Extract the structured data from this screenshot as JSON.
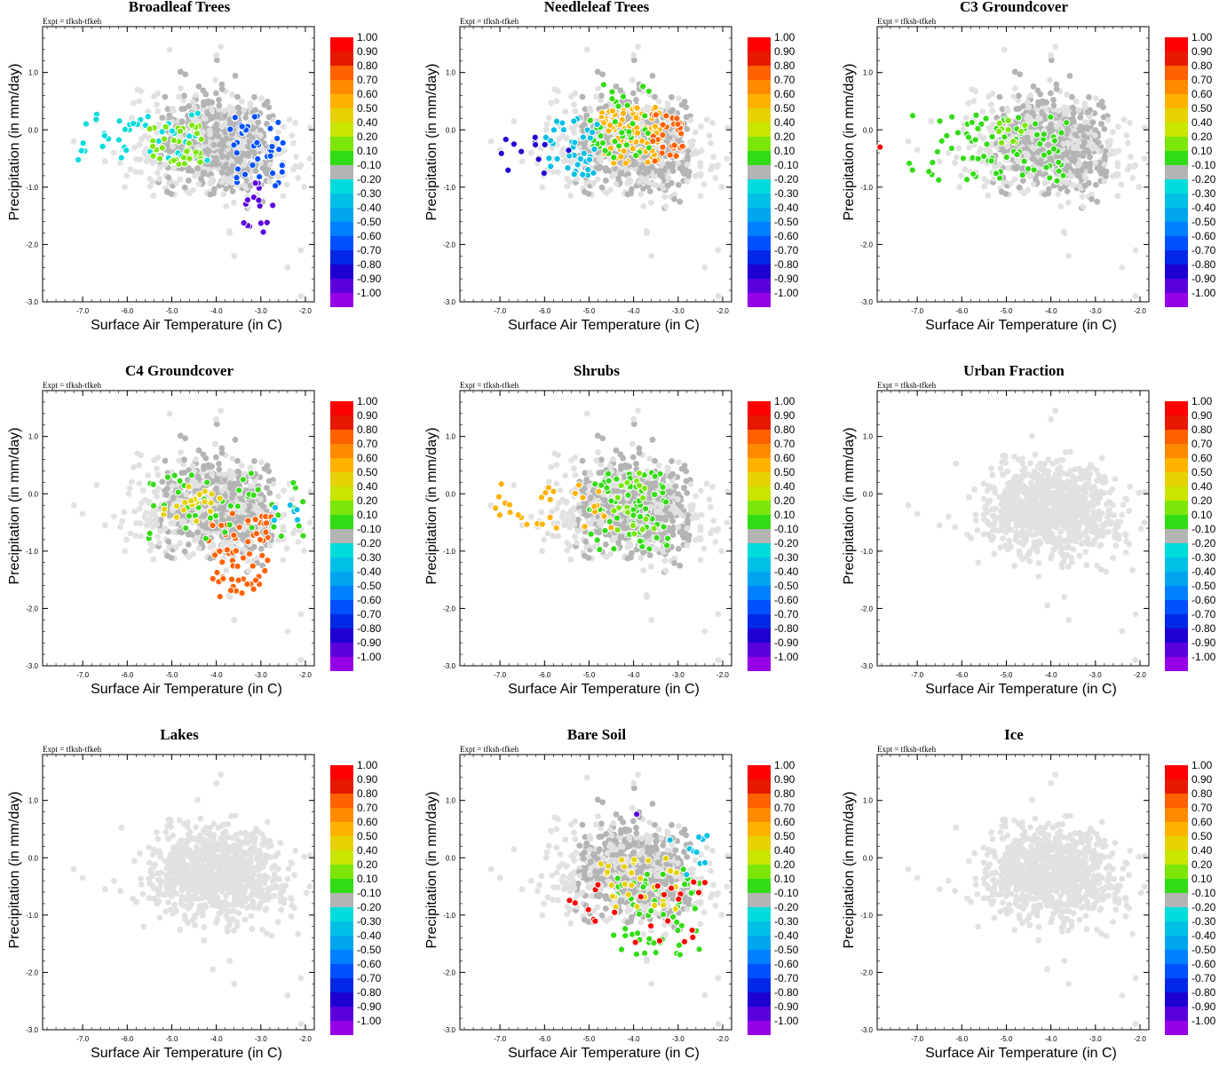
{
  "figure": {
    "experiment_label": "Expt = tfksh-tfkeh",
    "xlabel": "Surface Air Temperature (in C)",
    "ylabel": "Precipitation (in mm/day)",
    "panel_titles": [
      "Broadleaf Trees",
      "Needleleaf Trees",
      "C3 Groundcover",
      "C4 Groundcover",
      "Shrubs",
      "Urban Fraction",
      "Lakes",
      "Bare Soil",
      "Ice"
    ]
  },
  "colors": {
    "background_points_light": "#e1e1e1",
    "background_points_mid": "#b4b4b4",
    "palette": [
      "#ff0000",
      "#e61900",
      "#ff6000",
      "#ff8a00",
      "#ffb300",
      "#e6d200",
      "#c8e600",
      "#7ce60a",
      "#32dc14",
      "#b4b4b4",
      "#00dcdc",
      "#00c0e6",
      "#00a5f0",
      "#0080ff",
      "#0050ff",
      "#0028e6",
      "#1e00d2",
      "#5a00dc",
      "#9600e6"
    ]
  },
  "chart_data": [
    {
      "type": "scatter",
      "title": "Broadleaf Trees",
      "xlabel": "Surface Air Temperature (in C)",
      "ylabel": "Precipitation (in mm/day)",
      "xlim": [
        -7.9,
        -1.8
      ],
      "ylim": [
        -3.0,
        1.8
      ],
      "xticks": [
        -7.0,
        -6.0,
        -5.0,
        -4.0,
        -3.0,
        -2.0
      ],
      "yticks": [
        1.0,
        0.0,
        -1.0,
        -2.0,
        -3.0
      ],
      "colorbar": {
        "labels": [
          "1.00",
          "0.90",
          "0.80",
          "0.70",
          "0.60",
          "0.50",
          "0.40",
          "0.20",
          "0.10",
          "-0.10",
          "-0.20",
          "-0.30",
          "-0.40",
          "-0.50",
          "-0.60",
          "-0.70",
          "-0.80",
          "-0.90",
          "-1.00"
        ],
        "colors": [
          "#ff0000",
          "#e61900",
          "#ff6000",
          "#ff8a00",
          "#ffb300",
          "#e6d200",
          "#c8e600",
          "#7ce60a",
          "#32dc14",
          "#b4b4b4",
          "#00dcdc",
          "#00c0e6",
          "#00a5f0",
          "#0080ff",
          "#0050ff",
          "#0028e6",
          "#1e00d2",
          "#5a00dc",
          "#9600e6"
        ]
      },
      "highlight_clusters": [
        {
          "value": -0.25,
          "x": [
            -7.2,
            -4.2
          ],
          "y": [
            -0.6,
            0.3
          ],
          "n": 40
        },
        {
          "value": 0.3,
          "x": [
            -5.5,
            -4.3
          ],
          "y": [
            -0.6,
            0.1
          ],
          "n": 40
        },
        {
          "value": -0.6,
          "x": [
            -3.8,
            -2.5
          ],
          "y": [
            -1.0,
            0.3
          ],
          "n": 40
        },
        {
          "value": -0.9,
          "x": [
            -3.4,
            -2.7
          ],
          "y": [
            -1.8,
            -0.9
          ],
          "n": 15
        }
      ]
    },
    {
      "type": "scatter",
      "title": "Needleleaf Trees",
      "xlabel": "Surface Air Temperature (in C)",
      "ylabel": "Precipitation (in mm/day)",
      "xlim": [
        -7.9,
        -1.8
      ],
      "ylim": [
        -3.0,
        1.8
      ],
      "xticks": [
        -7.0,
        -6.0,
        -5.0,
        -4.0,
        -3.0,
        -2.0
      ],
      "yticks": [
        1.0,
        0.0,
        -1.0,
        -2.0,
        -3.0
      ],
      "colorbar": {
        "labels": [
          "1.00",
          "0.90",
          "0.80",
          "0.70",
          "0.60",
          "0.50",
          "0.40",
          "0.20",
          "0.10",
          "-0.10",
          "-0.20",
          "-0.30",
          "-0.40",
          "-0.50",
          "-0.60",
          "-0.70",
          "-0.80",
          "-0.90",
          "-1.00"
        ],
        "colors": [
          "#ff0000",
          "#e61900",
          "#ff6000",
          "#ff8a00",
          "#ffb300",
          "#e6d200",
          "#c8e600",
          "#7ce60a",
          "#32dc14",
          "#b4b4b4",
          "#00dcdc",
          "#00c0e6",
          "#00a5f0",
          "#0080ff",
          "#0050ff",
          "#0028e6",
          "#1e00d2",
          "#5a00dc",
          "#9600e6"
        ]
      },
      "highlight_clusters": [
        {
          "value": 0.55,
          "x": [
            -4.8,
            -3.4
          ],
          "y": [
            -0.6,
            0.4
          ],
          "n": 90
        },
        {
          "value": 0.15,
          "x": [
            -5.0,
            -3.6
          ],
          "y": [
            -0.5,
            0.8
          ],
          "n": 40
        },
        {
          "value": 0.8,
          "x": [
            -3.6,
            -2.9
          ],
          "y": [
            -0.6,
            0.3
          ],
          "n": 30
        },
        {
          "value": -0.3,
          "x": [
            -6.0,
            -4.8
          ],
          "y": [
            -0.8,
            0.2
          ],
          "n": 40
        },
        {
          "value": -0.8,
          "x": [
            -7.3,
            -5.2
          ],
          "y": [
            -0.9,
            -0.1
          ],
          "n": 12
        }
      ]
    },
    {
      "type": "scatter",
      "title": "C3 Groundcover",
      "xlabel": "Surface Air Temperature (in C)",
      "ylabel": "Precipitation (in mm/day)",
      "xlim": [
        -7.9,
        -1.8
      ],
      "ylim": [
        -3.0,
        1.8
      ],
      "xticks": [
        -7.0,
        -6.0,
        -5.0,
        -4.0,
        -3.0,
        -2.0
      ],
      "yticks": [
        1.0,
        0.0,
        -1.0,
        -2.0,
        -3.0
      ],
      "colorbar": {
        "labels": [
          "1.00",
          "0.90",
          "0.80",
          "0.70",
          "0.60",
          "0.50",
          "0.40",
          "0.20",
          "0.10",
          "-0.10",
          "-0.20",
          "-0.30",
          "-0.40",
          "-0.50",
          "-0.60",
          "-0.70",
          "-0.80",
          "-0.90",
          "-1.00"
        ],
        "colors": [
          "#ff0000",
          "#e61900",
          "#ff6000",
          "#ff8a00",
          "#ffb300",
          "#e6d200",
          "#c8e600",
          "#7ce60a",
          "#32dc14",
          "#b4b4b4",
          "#00dcdc",
          "#00c0e6",
          "#00a5f0",
          "#0080ff",
          "#0050ff",
          "#0028e6",
          "#1e00d2",
          "#5a00dc",
          "#9600e6"
        ]
      },
      "highlight_clusters": [
        {
          "value": 0.15,
          "x": [
            -7.2,
            -3.6
          ],
          "y": [
            -0.9,
            0.3
          ],
          "n": 80
        },
        {
          "value": 0.3,
          "x": [
            -5.3,
            -4.5
          ],
          "y": [
            -0.3,
            0.2
          ],
          "n": 10
        },
        {
          "value": 1.0,
          "x": [
            -7.9,
            -7.8
          ],
          "y": [
            -0.35,
            -0.3
          ],
          "n": 1
        }
      ]
    },
    {
      "type": "scatter",
      "title": "C4 Groundcover",
      "xlabel": "Surface Air Temperature (in C)",
      "ylabel": "Precipitation (in mm/day)",
      "xlim": [
        -7.9,
        -1.8
      ],
      "ylim": [
        -3.0,
        1.8
      ],
      "xticks": [
        -7.0,
        -6.0,
        -5.0,
        -4.0,
        -3.0,
        -2.0
      ],
      "yticks": [
        1.0,
        0.0,
        -1.0,
        -2.0,
        -3.0
      ],
      "colorbar": {
        "labels": [
          "1.00",
          "0.90",
          "0.80",
          "0.70",
          "0.60",
          "0.50",
          "0.40",
          "0.20",
          "0.10",
          "-0.10",
          "-0.20",
          "-0.30",
          "-0.40",
          "-0.50",
          "-0.60",
          "-0.70",
          "-0.80",
          "-0.90",
          "-1.00"
        ],
        "colors": [
          "#ff0000",
          "#e61900",
          "#ff6000",
          "#ff8a00",
          "#ffb300",
          "#e6d200",
          "#c8e600",
          "#7ce60a",
          "#32dc14",
          "#b4b4b4",
          "#00dcdc",
          "#00c0e6",
          "#00a5f0",
          "#0080ff",
          "#0050ff",
          "#0028e6",
          "#1e00d2",
          "#5a00dc",
          "#9600e6"
        ]
      },
      "highlight_clusters": [
        {
          "value": 0.8,
          "x": [
            -4.2,
            -2.7
          ],
          "y": [
            -1.8,
            -0.3
          ],
          "n": 70
        },
        {
          "value": 0.15,
          "x": [
            -5.6,
            -2.0
          ],
          "y": [
            -0.8,
            0.4
          ],
          "n": 45
        },
        {
          "value": 0.5,
          "x": [
            -5.2,
            -3.8
          ],
          "y": [
            -0.5,
            0.2
          ],
          "n": 20
        },
        {
          "value": -0.3,
          "x": [
            -2.8,
            -2.0
          ],
          "y": [
            -0.6,
            -0.1
          ],
          "n": 6
        }
      ]
    },
    {
      "type": "scatter",
      "title": "Shrubs",
      "xlabel": "Surface Air Temperature (in C)",
      "ylabel": "Precipitation (in mm/day)",
      "xlim": [
        -7.9,
        -1.8
      ],
      "ylim": [
        -3.0,
        1.8
      ],
      "xticks": [
        -7.0,
        -6.0,
        -5.0,
        -4.0,
        -3.0,
        -2.0
      ],
      "yticks": [
        1.0,
        0.0,
        -1.0,
        -2.0,
        -3.0
      ],
      "colorbar": {
        "labels": [
          "1.00",
          "0.90",
          "0.80",
          "0.70",
          "0.60",
          "0.50",
          "0.40",
          "0.20",
          "0.10",
          "-0.10",
          "-0.20",
          "-0.30",
          "-0.40",
          "-0.50",
          "-0.60",
          "-0.70",
          "-0.80",
          "-0.90",
          "-1.00"
        ],
        "colors": [
          "#ff0000",
          "#e61900",
          "#ff6000",
          "#ff8a00",
          "#ffb300",
          "#e6d200",
          "#c8e600",
          "#7ce60a",
          "#32dc14",
          "#b4b4b4",
          "#00dcdc",
          "#00c0e6",
          "#00a5f0",
          "#0080ff",
          "#0050ff",
          "#0028e6",
          "#1e00d2",
          "#5a00dc",
          "#9600e6"
        ]
      },
      "highlight_clusters": [
        {
          "value": 0.15,
          "x": [
            -5.0,
            -3.2
          ],
          "y": [
            -1.0,
            0.4
          ],
          "n": 70
        },
        {
          "value": 0.6,
          "x": [
            -7.2,
            -4.5
          ],
          "y": [
            -0.6,
            0.2
          ],
          "n": 30
        },
        {
          "value": 0.3,
          "x": [
            -4.5,
            -3.5
          ],
          "y": [
            -0.7,
            0.4
          ],
          "n": 20
        }
      ]
    },
    {
      "type": "scatter",
      "title": "Urban Fraction",
      "xlabel": "Surface Air Temperature (in C)",
      "ylabel": "Precipitation (in mm/day)",
      "xlim": [
        -7.9,
        -1.8
      ],
      "ylim": [
        -3.0,
        1.8
      ],
      "xticks": [
        -7.0,
        -6.0,
        -5.0,
        -4.0,
        -3.0,
        -2.0
      ],
      "yticks": [
        1.0,
        0.0,
        -1.0,
        -2.0,
        -3.0
      ],
      "colorbar": {
        "labels": [
          "1.00",
          "0.90",
          "0.80",
          "0.70",
          "0.60",
          "0.50",
          "0.40",
          "0.20",
          "0.10",
          "-0.10",
          "-0.20",
          "-0.30",
          "-0.40",
          "-0.50",
          "-0.60",
          "-0.70",
          "-0.80",
          "-0.90",
          "-1.00"
        ],
        "colors": [
          "#ff0000",
          "#e61900",
          "#ff6000",
          "#ff8a00",
          "#ffb300",
          "#e6d200",
          "#c8e600",
          "#7ce60a",
          "#32dc14",
          "#b4b4b4",
          "#00dcdc",
          "#00c0e6",
          "#00a5f0",
          "#0080ff",
          "#0050ff",
          "#0028e6",
          "#1e00d2",
          "#5a00dc",
          "#9600e6"
        ]
      },
      "highlight_clusters": []
    },
    {
      "type": "scatter",
      "title": "Lakes",
      "xlabel": "Surface Air Temperature (in C)",
      "ylabel": "Precipitation (in mm/day)",
      "xlim": [
        -7.9,
        -1.8
      ],
      "ylim": [
        -3.0,
        1.8
      ],
      "xticks": [
        -7.0,
        -6.0,
        -5.0,
        -4.0,
        -3.0,
        -2.0
      ],
      "yticks": [
        1.0,
        0.0,
        -1.0,
        -2.0,
        -3.0
      ],
      "colorbar": {
        "labels": [
          "1.00",
          "0.90",
          "0.80",
          "0.70",
          "0.60",
          "0.50",
          "0.40",
          "0.20",
          "0.10",
          "-0.10",
          "-0.20",
          "-0.30",
          "-0.40",
          "-0.50",
          "-0.60",
          "-0.70",
          "-0.80",
          "-0.90",
          "-1.00"
        ],
        "colors": [
          "#ff0000",
          "#e61900",
          "#ff6000",
          "#ff8a00",
          "#ffb300",
          "#e6d200",
          "#c8e600",
          "#7ce60a",
          "#32dc14",
          "#b4b4b4",
          "#00dcdc",
          "#00c0e6",
          "#00a5f0",
          "#0080ff",
          "#0050ff",
          "#0028e6",
          "#1e00d2",
          "#5a00dc",
          "#9600e6"
        ]
      },
      "highlight_clusters": []
    },
    {
      "type": "scatter",
      "title": "Bare Soil",
      "xlabel": "Surface Air Temperature (in C)",
      "ylabel": "Precipitation (in mm/day)",
      "xlim": [
        -7.9,
        -1.8
      ],
      "ylim": [
        -3.0,
        1.8
      ],
      "xticks": [
        -7.0,
        -6.0,
        -5.0,
        -4.0,
        -3.0,
        -2.0
      ],
      "yticks": [
        1.0,
        0.0,
        -1.0,
        -2.0,
        -3.0
      ],
      "colorbar": {
        "labels": [
          "1.00",
          "0.90",
          "0.80",
          "0.70",
          "0.60",
          "0.50",
          "0.40",
          "0.20",
          "0.10",
          "-0.10",
          "-0.20",
          "-0.30",
          "-0.40",
          "-0.50",
          "-0.60",
          "-0.70",
          "-0.80",
          "-0.90",
          "-1.00"
        ],
        "colors": [
          "#ff0000",
          "#e61900",
          "#ff6000",
          "#ff8a00",
          "#ffb300",
          "#e6d200",
          "#c8e600",
          "#7ce60a",
          "#32dc14",
          "#b4b4b4",
          "#00dcdc",
          "#00c0e6",
          "#00a5f0",
          "#0080ff",
          "#0050ff",
          "#0028e6",
          "#1e00d2",
          "#5a00dc",
          "#9600e6"
        ]
      },
      "highlight_clusters": [
        {
          "value": 0.15,
          "x": [
            -4.6,
            -2.5
          ],
          "y": [
            -1.7,
            -0.2
          ],
          "n": 60
        },
        {
          "value": 0.5,
          "x": [
            -4.8,
            -3.0
          ],
          "y": [
            -0.9,
            0.0
          ],
          "n": 30
        },
        {
          "value": 1.0,
          "x": [
            -5.6,
            -2.0
          ],
          "y": [
            -1.5,
            -0.4
          ],
          "n": 25
        },
        {
          "value": -0.3,
          "x": [
            -3.2,
            -2.3
          ],
          "y": [
            -0.3,
            0.5
          ],
          "n": 10
        },
        {
          "value": -0.9,
          "x": [
            -4.1,
            -3.9
          ],
          "y": [
            0.7,
            0.8
          ],
          "n": 1
        }
      ]
    },
    {
      "type": "scatter",
      "title": "Ice",
      "xlabel": "Surface Air Temperature (in C)",
      "ylabel": "Precipitation (in mm/day)",
      "xlim": [
        -7.9,
        -1.8
      ],
      "ylim": [
        -3.0,
        1.8
      ],
      "xticks": [
        -7.0,
        -6.0,
        -5.0,
        -4.0,
        -3.0,
        -2.0
      ],
      "yticks": [
        1.0,
        0.0,
        -1.0,
        -2.0,
        -3.0
      ],
      "colorbar": {
        "labels": [
          "1.00",
          "0.90",
          "0.80",
          "0.70",
          "0.60",
          "0.50",
          "0.40",
          "0.20",
          "0.10",
          "-0.10",
          "-0.20",
          "-0.30",
          "-0.40",
          "-0.50",
          "-0.60",
          "-0.70",
          "-0.80",
          "-0.90",
          "-1.00"
        ],
        "colors": [
          "#ff0000",
          "#e61900",
          "#ff6000",
          "#ff8a00",
          "#ffb300",
          "#e6d200",
          "#c8e600",
          "#7ce60a",
          "#32dc14",
          "#b4b4b4",
          "#00dcdc",
          "#00c0e6",
          "#00a5f0",
          "#0080ff",
          "#0050ff",
          "#0028e6",
          "#1e00d2",
          "#5a00dc",
          "#9600e6"
        ]
      },
      "highlight_clusters": []
    }
  ]
}
